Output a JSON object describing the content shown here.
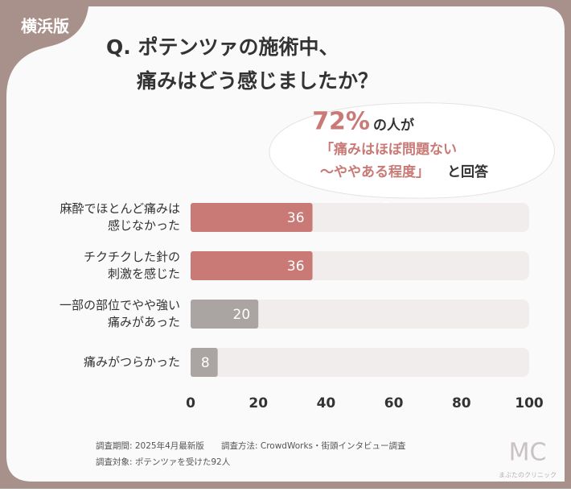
{
  "badge": "横浜版",
  "title_lines": [
    "Q. ポテンツァの施術中、",
    "痛みはどう感じましたか？"
  ],
  "callout": {
    "percent": "72%",
    "suffix": "の人が",
    "lines": [
      "「痛みはほぼ問題ない",
      "～ややある程度」"
    ],
    "tail": "と回答"
  },
  "chart_data": {
    "type": "bar",
    "orientation": "horizontal",
    "categories": [
      [
        "麻酔でほとんど痛みは",
        "感じなかった"
      ],
      [
        "チクチクした針の",
        "刺激を感じた"
      ],
      [
        "一部の部位でやや強い",
        "痛みがあった"
      ],
      [
        "痛みがつらかった"
      ]
    ],
    "values": [
      36,
      36,
      20,
      8
    ],
    "colors": [
      "#c97a76",
      "#c97a76",
      "#aaa5a3",
      "#aaa5a3"
    ],
    "track_color": "#f1edec",
    "xlim": [
      0,
      100
    ],
    "xticks": [
      0,
      20,
      40,
      60,
      80,
      100
    ],
    "grid": false
  },
  "footnotes": [
    "調査期間: 2025年4月最新版",
    "調査方法: CrowdWorks・街頭インタビュー調査",
    "調査対象: ポテンツァを受けた92人"
  ],
  "logo": {
    "mark": "MC",
    "name": "まぶたのクリニック"
  }
}
